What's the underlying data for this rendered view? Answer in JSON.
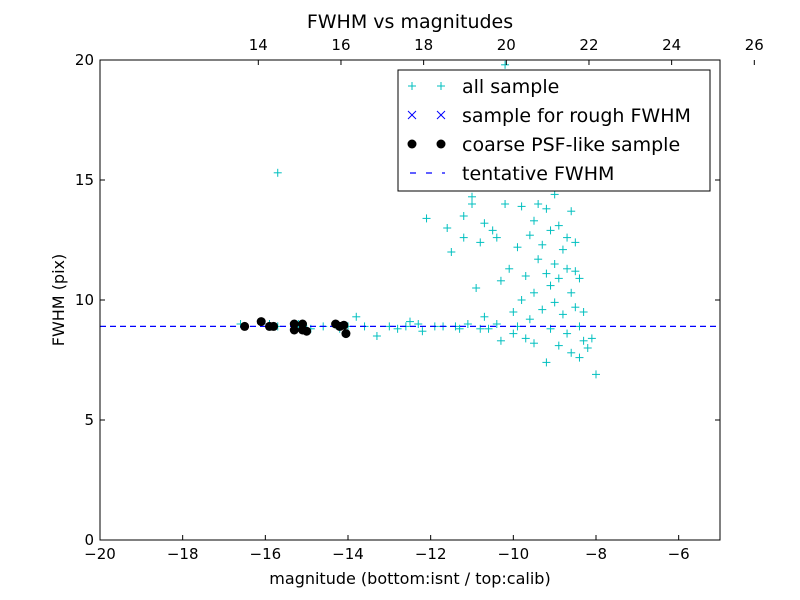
{
  "chart_data": {
    "type": "scatter",
    "title": "FWHM vs magnitudes",
    "xlabel": "magnitude (bottom:isnt / top:calib)",
    "ylabel": "FWHM (pix)",
    "xlim": [
      -20,
      -5
    ],
    "ylim": [
      0,
      20
    ],
    "x_ticks": [
      -20,
      -18,
      -16,
      -14,
      -12,
      -10,
      -8,
      -6
    ],
    "x_tick_labels": [
      "−20",
      "−18",
      "−16",
      "−14",
      "−12",
      "−10",
      "−8",
      "−6"
    ],
    "y_ticks": [
      0,
      5,
      10,
      15,
      20
    ],
    "y_tick_labels": [
      "0",
      "5",
      "10",
      "15",
      "20"
    ],
    "top_axis": {
      "label_note": "calib",
      "offset_from_bottom": 30.17,
      "ticks": [
        14,
        16,
        18,
        20,
        22,
        24,
        26
      ],
      "tick_labels": [
        "14",
        "16",
        "18",
        "20",
        "22",
        "24",
        "26"
      ]
    },
    "grid": false,
    "legend": {
      "position": "upper-right",
      "entries": [
        {
          "label": "all sample",
          "marker": "plus",
          "color": "#00bfbf"
        },
        {
          "label": "sample for rough FWHM",
          "marker": "x",
          "color": "#0000ff"
        },
        {
          "label": "coarse PSF-like sample",
          "marker": "dot",
          "color": "#000000"
        },
        {
          "label": "tentative FWHM",
          "marker": "dashed-line",
          "color": "#0000ff"
        }
      ]
    },
    "series": [
      {
        "name": "all sample",
        "marker": "plus",
        "color": "#00bfbf",
        "points": [
          [
            -16.6,
            9.0
          ],
          [
            -16.5,
            8.9
          ],
          [
            -16.1,
            9.1
          ],
          [
            -15.9,
            9.0
          ],
          [
            -15.7,
            8.9
          ],
          [
            -15.7,
            15.3
          ],
          [
            -15.3,
            8.9
          ],
          [
            -15.2,
            9.0
          ],
          [
            -15.0,
            8.8
          ],
          [
            -14.9,
            8.8
          ],
          [
            -14.6,
            8.9
          ],
          [
            -14.3,
            9.0
          ],
          [
            -14.2,
            8.8
          ],
          [
            -14.0,
            8.9
          ],
          [
            -13.8,
            9.3
          ],
          [
            -13.6,
            8.9
          ],
          [
            -13.3,
            8.5
          ],
          [
            -13.0,
            8.9
          ],
          [
            -12.8,
            8.8
          ],
          [
            -12.6,
            8.9
          ],
          [
            -12.5,
            9.1
          ],
          [
            -12.3,
            9.0
          ],
          [
            -12.2,
            8.7
          ],
          [
            -12.1,
            13.4
          ],
          [
            -11.9,
            8.9
          ],
          [
            -11.7,
            8.9
          ],
          [
            -11.6,
            13.0
          ],
          [
            -11.5,
            12.0
          ],
          [
            -11.4,
            8.9
          ],
          [
            -11.3,
            8.8
          ],
          [
            -11.2,
            13.5
          ],
          [
            -11.2,
            12.6
          ],
          [
            -11.1,
            9.0
          ],
          [
            -11.0,
            14.3
          ],
          [
            -11.0,
            14.0
          ],
          [
            -10.9,
            10.5
          ],
          [
            -10.8,
            8.8
          ],
          [
            -10.8,
            12.4
          ],
          [
            -10.7,
            9.3
          ],
          [
            -10.7,
            13.2
          ],
          [
            -10.6,
            8.8
          ],
          [
            -10.5,
            12.9
          ],
          [
            -10.4,
            12.6
          ],
          [
            -10.4,
            9.0
          ],
          [
            -10.3,
            8.3
          ],
          [
            -10.3,
            10.8
          ],
          [
            -10.2,
            19.8
          ],
          [
            -10.2,
            14.0
          ],
          [
            -10.1,
            11.3
          ],
          [
            -10.0,
            8.6
          ],
          [
            -10.0,
            9.5
          ],
          [
            -9.9,
            8.9
          ],
          [
            -9.9,
            12.2
          ],
          [
            -9.8,
            10.0
          ],
          [
            -9.8,
            13.9
          ],
          [
            -9.7,
            11.0
          ],
          [
            -9.7,
            8.4
          ],
          [
            -9.6,
            12.7
          ],
          [
            -9.6,
            9.2
          ],
          [
            -9.5,
            13.3
          ],
          [
            -9.5,
            10.3
          ],
          [
            -9.5,
            8.2
          ],
          [
            -9.4,
            11.7
          ],
          [
            -9.4,
            14.0
          ],
          [
            -9.3,
            9.6
          ],
          [
            -9.3,
            12.3
          ],
          [
            -9.2,
            11.1
          ],
          [
            -9.2,
            7.4
          ],
          [
            -9.2,
            13.8
          ],
          [
            -9.1,
            10.6
          ],
          [
            -9.1,
            8.8
          ],
          [
            -9.1,
            12.9
          ],
          [
            -9.0,
            14.4
          ],
          [
            -9.0,
            11.5
          ],
          [
            -9.0,
            9.9
          ],
          [
            -8.9,
            8.1
          ],
          [
            -8.9,
            13.1
          ],
          [
            -8.9,
            10.9
          ],
          [
            -8.8,
            12.1
          ],
          [
            -8.8,
            9.4
          ],
          [
            -8.8,
            14.7
          ],
          [
            -8.7,
            11.3
          ],
          [
            -8.7,
            8.6
          ],
          [
            -8.7,
            12.6
          ],
          [
            -8.6,
            10.3
          ],
          [
            -8.6,
            13.7
          ],
          [
            -8.6,
            7.8
          ],
          [
            -8.5,
            11.2
          ],
          [
            -8.5,
            9.7
          ],
          [
            -8.5,
            12.4
          ],
          [
            -8.4,
            8.9
          ],
          [
            -8.4,
            10.9
          ],
          [
            -8.4,
            7.6
          ],
          [
            -8.3,
            8.3
          ],
          [
            -8.3,
            9.5
          ],
          [
            -8.2,
            8.0
          ],
          [
            -8.1,
            8.4
          ],
          [
            -8.0,
            6.9
          ]
        ]
      },
      {
        "name": "coarse PSF-like sample",
        "marker": "dot",
        "color": "#000000",
        "points": [
          [
            -16.5,
            8.9
          ],
          [
            -16.1,
            9.1
          ],
          [
            -15.9,
            8.9
          ],
          [
            -15.8,
            8.9
          ],
          [
            -15.3,
            9.0
          ],
          [
            -15.3,
            8.75
          ],
          [
            -15.1,
            9.0
          ],
          [
            -15.1,
            8.75
          ],
          [
            -15.0,
            8.7
          ],
          [
            -14.3,
            9.0
          ],
          [
            -14.2,
            8.9
          ],
          [
            -14.1,
            8.95
          ],
          [
            -14.05,
            8.6
          ]
        ]
      }
    ],
    "reference_line": {
      "name": "tentative FWHM",
      "y": 8.9,
      "style": "dashed",
      "color": "#0000ff"
    }
  }
}
